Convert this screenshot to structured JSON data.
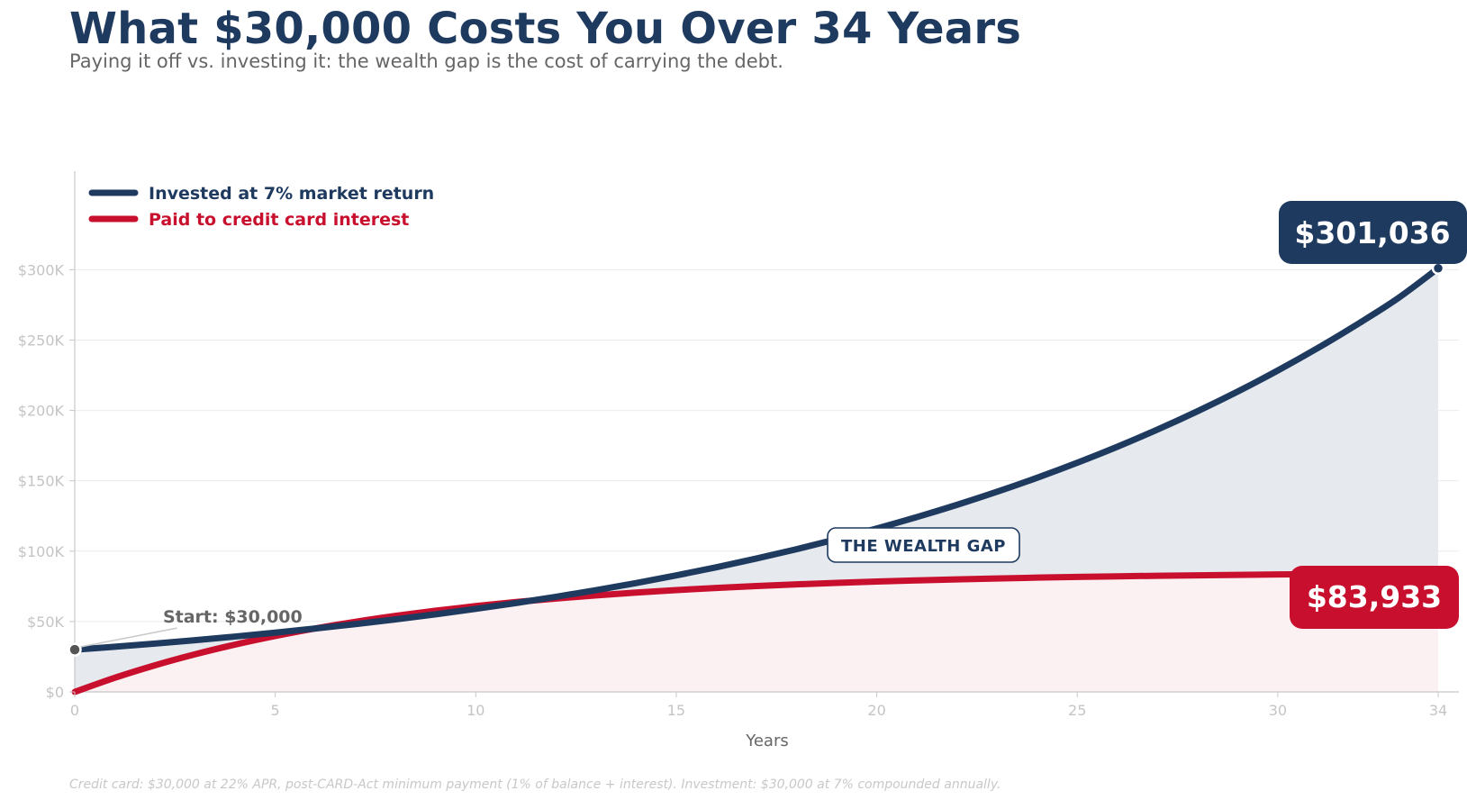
{
  "header": {
    "title": "What $30,000 Costs You Over 34 Years",
    "subtitle": "Paying it off vs. investing it: the wealth gap is the cost of carrying the debt."
  },
  "footnote": "Credit card: $30,000 at 22% APR, post-CARD-Act minimum payment (1% of balance + interest). Investment: $30,000 at 7% compounded annually.",
  "colors": {
    "invest": "#1e3a5f",
    "interest": "#c8102e",
    "invest_fill": "#e6e9ee",
    "interest_fill": "#fbf0f2",
    "grid": "#ebebeb",
    "axis": "#c8c8c8"
  },
  "chart_data": {
    "type": "area",
    "title": "What $30,000 Costs You Over 34 Years",
    "subtitle": "Paying it off vs. investing it: the wealth gap is the cost of carrying the debt.",
    "xlabel": "Years",
    "ylabel": "",
    "xlim": [
      0,
      34
    ],
    "ylim": [
      0,
      370000
    ],
    "x_ticks": [
      0,
      5,
      10,
      15,
      20,
      25,
      30,
      34
    ],
    "x_tick_labels": [
      "0",
      "5",
      "10",
      "15",
      "20",
      "25",
      "30",
      "34"
    ],
    "y_ticks": [
      0,
      50000,
      100000,
      150000,
      200000,
      250000,
      300000
    ],
    "y_tick_labels": [
      "$0",
      "$50K",
      "$100K",
      "$150K",
      "$200K",
      "$250K",
      "$300K"
    ],
    "grid": true,
    "legend_position": "top-left",
    "x": [
      0,
      1,
      2,
      3,
      4,
      5,
      6,
      7,
      8,
      9,
      10,
      11,
      12,
      13,
      14,
      15,
      16,
      17,
      18,
      19,
      20,
      21,
      22,
      23,
      24,
      25,
      26,
      27,
      28,
      29,
      30,
      31,
      32,
      33,
      34
    ],
    "series": [
      {
        "name": "Invested at 7% market return",
        "values": [
          30000,
          32100,
          34347,
          36751,
          39324,
          42077,
          45022,
          48173,
          51546,
          55154,
          59015,
          63146,
          67566,
          72296,
          77357,
          82771,
          88565,
          94765,
          101398,
          108496,
          116091,
          124217,
          132912,
          142216,
          152171,
          162823,
          174221,
          186416,
          199465,
          213428,
          228368,
          244353,
          261458,
          279760,
          301036
        ]
      },
      {
        "name": "Paid to credit card interest",
        "values": [
          0,
          10036,
          18893,
          26710,
          33608,
          39697,
          45070,
          49812,
          53997,
          57690,
          60950,
          63826,
          66365,
          68605,
          70582,
          72327,
          73867,
          75226,
          76425,
          77484,
          78418,
          79243,
          79970,
          80612,
          81179,
          81679,
          82120,
          82510,
          82854,
          83157,
          83425,
          83661,
          83870,
          84053,
          83933
        ]
      }
    ],
    "annotations": [
      {
        "text": "Start: $30,000",
        "x": 0,
        "y": 30000
      },
      {
        "text": "THE WEALTH GAP",
        "x": 21,
        "y": 100000
      },
      {
        "text": "$301,036",
        "x": 34,
        "y": 301036,
        "series": "Invested at 7% market return"
      },
      {
        "text": "$83,933",
        "x": 34,
        "y": 83933,
        "series": "Paid to credit card interest"
      }
    ]
  }
}
